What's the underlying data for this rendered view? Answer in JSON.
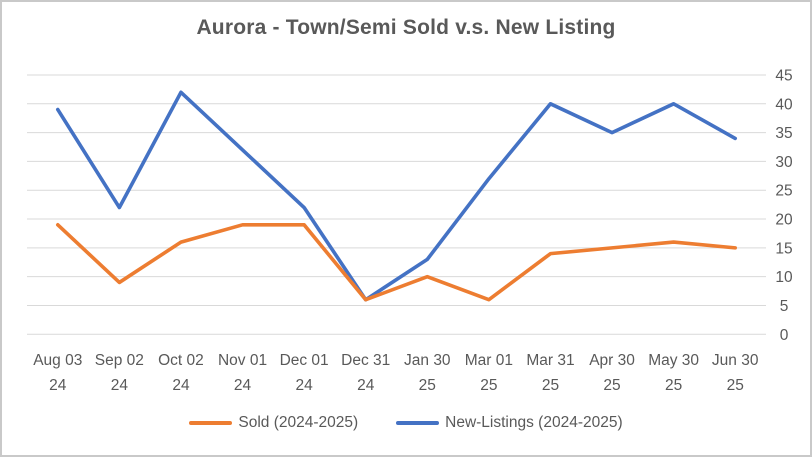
{
  "chart_data": {
    "type": "line",
    "title": "Aurora - Town/Semi Sold v.s. New Listing",
    "categories": [
      "Aug 03",
      "Sep 02",
      "Oct 02",
      "Nov 01",
      "Dec 01",
      "Dec 31",
      "Jan 30",
      "Mar 01",
      "Mar 31",
      "Apr 30",
      "May 30",
      "Jun 30"
    ],
    "category_years": [
      "24",
      "24",
      "24",
      "24",
      "24",
      "24",
      "25",
      "25",
      "25",
      "25",
      "25",
      "25"
    ],
    "series": [
      {
        "name": "Sold (2024-2025)",
        "color": "#ED7D31",
        "values": [
          19,
          9,
          16,
          19,
          19,
          6,
          10,
          6,
          14,
          15,
          16,
          15
        ]
      },
      {
        "name": "New-Listings (2024-2025)",
        "color": "#4472C4",
        "values": [
          39,
          22,
          42,
          32,
          22,
          6,
          13,
          27,
          40,
          35,
          40,
          34
        ]
      }
    ],
    "ylim": [
      0,
      45
    ],
    "ytick_step": 5,
    "yticks": [
      0,
      5,
      10,
      15,
      20,
      25,
      30,
      35,
      40,
      45
    ],
    "yaxis_side": "right",
    "grid": "horizontal",
    "legend_position": "bottom",
    "gridline_color": "#d9d9d9",
    "axis_text_color": "#595959"
  }
}
